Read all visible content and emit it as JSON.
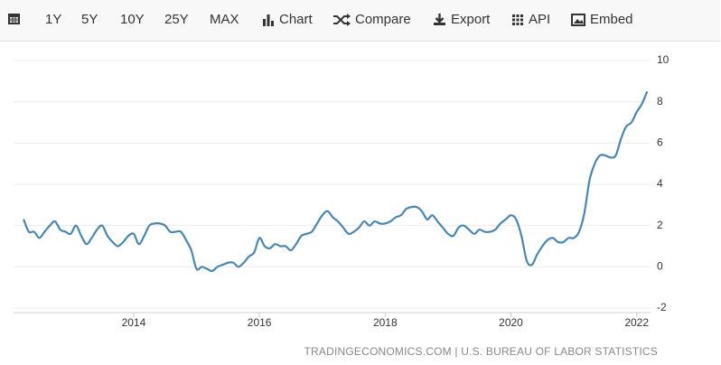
{
  "toolbar": {
    "buttons": [
      "1Y",
      "5Y",
      "10Y",
      "25Y",
      "MAX",
      "Chart",
      "Compare",
      "Export",
      "API",
      "Embed"
    ]
  },
  "chart_data": {
    "type": "line",
    "color": "#4a87b0",
    "x": [
      2012.25,
      2012.333,
      2012.417,
      2012.5,
      2012.583,
      2012.667,
      2012.75,
      2012.833,
      2012.917,
      2013,
      2013.083,
      2013.167,
      2013.25,
      2013.333,
      2013.417,
      2013.5,
      2013.583,
      2013.667,
      2013.75,
      2013.833,
      2013.917,
      2014,
      2014.083,
      2014.167,
      2014.25,
      2014.333,
      2014.417,
      2014.5,
      2014.583,
      2014.667,
      2014.75,
      2014.833,
      2014.917,
      2015,
      2015.083,
      2015.167,
      2015.25,
      2015.333,
      2015.417,
      2015.5,
      2015.583,
      2015.667,
      2015.75,
      2015.833,
      2015.917,
      2016,
      2016.083,
      2016.167,
      2016.25,
      2016.333,
      2016.417,
      2016.5,
      2016.583,
      2016.667,
      2016.75,
      2016.833,
      2016.917,
      2017,
      2017.083,
      2017.167,
      2017.25,
      2017.333,
      2017.417,
      2017.5,
      2017.583,
      2017.667,
      2017.75,
      2017.833,
      2017.917,
      2018,
      2018.083,
      2018.167,
      2018.25,
      2018.333,
      2018.417,
      2018.5,
      2018.583,
      2018.667,
      2018.75,
      2018.833,
      2018.917,
      2019,
      2019.083,
      2019.167,
      2019.25,
      2019.333,
      2019.417,
      2019.5,
      2019.583,
      2019.667,
      2019.75,
      2019.833,
      2019.917,
      2020,
      2020.083,
      2020.167,
      2020.25,
      2020.333,
      2020.417,
      2020.5,
      2020.583,
      2020.667,
      2020.75,
      2020.833,
      2020.917,
      2021,
      2021.083,
      2021.167,
      2021.25,
      2021.333,
      2021.417,
      2021.5,
      2021.583,
      2021.667,
      2021.75,
      2021.833,
      2021.917,
      2022,
      2022.083,
      2022.167
    ],
    "values": [
      2.3,
      1.7,
      1.7,
      1.4,
      1.7,
      2.0,
      2.2,
      1.8,
      1.7,
      1.6,
      2.0,
      1.5,
      1.1,
      1.4,
      1.8,
      2.0,
      1.5,
      1.2,
      1.0,
      1.2,
      1.5,
      1.6,
      1.1,
      1.5,
      2.0,
      2.1,
      2.1,
      2.0,
      1.7,
      1.7,
      1.7,
      1.3,
      0.8,
      -0.1,
      0.0,
      -0.1,
      -0.2,
      0.0,
      0.1,
      0.2,
      0.2,
      0.0,
      0.2,
      0.5,
      0.7,
      1.4,
      1.0,
      0.9,
      1.1,
      1.0,
      1.0,
      0.8,
      1.1,
      1.5,
      1.6,
      1.7,
      2.1,
      2.5,
      2.7,
      2.4,
      2.2,
      1.9,
      1.6,
      1.7,
      1.9,
      2.2,
      2.0,
      2.2,
      2.1,
      2.1,
      2.2,
      2.4,
      2.5,
      2.8,
      2.9,
      2.9,
      2.7,
      2.3,
      2.5,
      2.2,
      1.9,
      1.6,
      1.5,
      1.9,
      2.0,
      1.8,
      1.6,
      1.8,
      1.7,
      1.7,
      1.8,
      2.1,
      2.3,
      2.5,
      2.3,
      1.5,
      0.3,
      0.1,
      0.6,
      1.0,
      1.3,
      1.4,
      1.2,
      1.2,
      1.4,
      1.4,
      1.7,
      2.6,
      4.2,
      5.0,
      5.4,
      5.4,
      5.3,
      5.4,
      6.2,
      6.8,
      7.0,
      7.5,
      7.9,
      8.5
    ],
    "xlim": [
      2012.09,
      2022.22
    ],
    "xticks": [
      2014,
      2016,
      2018,
      2020,
      2022
    ],
    "ylim": [
      -2,
      10
    ],
    "yticks": [
      -2,
      0,
      2,
      4,
      6,
      8,
      10
    ],
    "grid": true,
    "source": "TRADINGECONOMICS.COM | U.S. BUREAU OF LABOR STATISTICS"
  }
}
